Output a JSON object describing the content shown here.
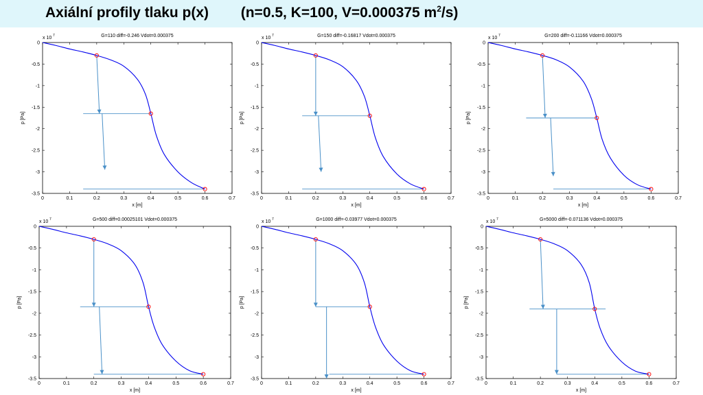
{
  "page": {
    "title_main": "Axiální profily tlaku p(x)",
    "title_params": "(n=0.5, K=100, V=0.000375 m",
    "title_sup": "2",
    "title_end": "/s)"
  },
  "colors": {
    "banner": "#dff6fb",
    "curve": "#0000ee",
    "arrow": "#4a90c8",
    "marker": "#ff0000"
  },
  "chart_data": [
    {
      "type": "line",
      "title": "G=110    diff=-0.246  Vdot=0.000375",
      "xlabel": "x [m]",
      "ylabel": "p [Pa]",
      "yscale_label": "x 10",
      "yscale_exp": "7",
      "xlim": [
        0,
        0.7
      ],
      "ylim": [
        -3.5,
        0
      ],
      "xticks": [
        "0",
        "0.1",
        "0.2",
        "0.3",
        "0.4",
        "0.5",
        "0.6",
        "0.7"
      ],
      "yticks": [
        "0",
        "-0.5",
        "-1",
        "-1.5",
        "-2",
        "-2.5",
        "-3",
        "-3.5"
      ],
      "x": [
        0,
        0.05,
        0.1,
        0.15,
        0.2,
        0.25,
        0.3,
        0.35,
        0.38,
        0.4,
        0.42,
        0.45,
        0.5,
        0.55,
        0.6
      ],
      "y": [
        0,
        -0.07,
        -0.15,
        -0.22,
        -0.3,
        -0.4,
        -0.55,
        -0.85,
        -1.2,
        -1.65,
        -2.15,
        -2.6,
        -3.0,
        -3.25,
        -3.4
      ],
      "markers": [
        {
          "x": 0.2,
          "y": -0.3
        },
        {
          "x": 0.4,
          "y": -1.65
        },
        {
          "x": 0.6,
          "y": -3.4
        }
      ],
      "guides": {
        "hline1": [
          0.15,
          0.4,
          -1.65
        ],
        "hline2": [
          0.15,
          0.6,
          -3.4
        ],
        "arrow1": [
          0.2,
          -0.3,
          0.21,
          -1.65
        ],
        "arrow2": [
          0.22,
          -1.65,
          0.23,
          -2.95
        ]
      }
    },
    {
      "type": "line",
      "title": "G=150    diff=-0.16817  Vdot=0.000375",
      "xlabel": "x [m]",
      "ylabel": "p [Pa]",
      "yscale_label": "x 10",
      "yscale_exp": "7",
      "xlim": [
        0,
        0.7
      ],
      "ylim": [
        -3.5,
        0
      ],
      "xticks": [
        "0",
        "0.1",
        "0.2",
        "0.3",
        "0.4",
        "0.5",
        "0.6",
        "0.7"
      ],
      "yticks": [
        "0",
        "-0.5",
        "-1",
        "-1.5",
        "-2",
        "-2.5",
        "-3",
        "-3.5"
      ],
      "x": [
        0,
        0.05,
        0.1,
        0.15,
        0.2,
        0.25,
        0.3,
        0.35,
        0.38,
        0.4,
        0.42,
        0.45,
        0.5,
        0.55,
        0.6
      ],
      "y": [
        0,
        -0.07,
        -0.15,
        -0.22,
        -0.3,
        -0.4,
        -0.56,
        -0.88,
        -1.25,
        -1.7,
        -2.2,
        -2.65,
        -3.05,
        -3.28,
        -3.4
      ],
      "markers": [
        {
          "x": 0.2,
          "y": -0.3
        },
        {
          "x": 0.4,
          "y": -1.7
        },
        {
          "x": 0.6,
          "y": -3.4
        }
      ],
      "guides": {
        "hline1": [
          0.15,
          0.4,
          -1.7
        ],
        "hline2": [
          0.15,
          0.6,
          -3.4
        ],
        "arrow1": [
          0.2,
          -0.3,
          0.2,
          -1.7
        ],
        "arrow2": [
          0.21,
          -1.7,
          0.22,
          -3.0
        ]
      }
    },
    {
      "type": "line",
      "title": "G=200    diff=-0.11166  Vdot=0.000375",
      "xlabel": "x [m]",
      "ylabel": "p [Pa]",
      "yscale_label": "x 10",
      "yscale_exp": "7",
      "xlim": [
        0,
        0.7
      ],
      "ylim": [
        -3.5,
        0
      ],
      "xticks": [
        "0",
        "0.1",
        "0.2",
        "0.3",
        "0.4",
        "0.5",
        "0.6",
        "0.7"
      ],
      "yticks": [
        "0",
        "-0.5",
        "-1",
        "-1.5",
        "-2",
        "-2.5",
        "-3",
        "-3.5"
      ],
      "x": [
        0,
        0.05,
        0.1,
        0.15,
        0.2,
        0.25,
        0.3,
        0.35,
        0.38,
        0.4,
        0.42,
        0.45,
        0.5,
        0.55,
        0.6
      ],
      "y": [
        0,
        -0.07,
        -0.15,
        -0.22,
        -0.3,
        -0.4,
        -0.57,
        -0.9,
        -1.3,
        -1.75,
        -2.25,
        -2.68,
        -3.08,
        -3.3,
        -3.4
      ],
      "markers": [
        {
          "x": 0.2,
          "y": -0.3
        },
        {
          "x": 0.4,
          "y": -1.75
        },
        {
          "x": 0.6,
          "y": -3.4
        }
      ],
      "guides": {
        "hline1": [
          0.14,
          0.4,
          -1.75
        ],
        "hline2": [
          0.24,
          0.6,
          -3.4
        ],
        "arrow1": [
          0.2,
          -0.3,
          0.21,
          -1.75
        ],
        "arrow2": [
          0.23,
          -1.75,
          0.24,
          -3.1
        ]
      }
    },
    {
      "type": "line",
      "title": "G=500    diff=0.00025101  Vdot=0.000375",
      "xlabel": "x [m]",
      "ylabel": "p [Pa]",
      "yscale_label": "x 10",
      "yscale_exp": "7",
      "xlim": [
        0,
        0.7
      ],
      "ylim": [
        -3.5,
        0
      ],
      "xticks": [
        "0",
        "0.1",
        "0.2",
        "0.3",
        "0.4",
        "0.5",
        "0.6",
        "0.7"
      ],
      "yticks": [
        "0",
        "-0.5",
        "-1",
        "-1.5",
        "-2",
        "-2.5",
        "-3",
        "-3.5"
      ],
      "x": [
        0,
        0.05,
        0.1,
        0.15,
        0.2,
        0.25,
        0.3,
        0.35,
        0.38,
        0.4,
        0.42,
        0.45,
        0.5,
        0.55,
        0.6
      ],
      "y": [
        0,
        -0.07,
        -0.15,
        -0.22,
        -0.3,
        -0.4,
        -0.56,
        -0.88,
        -1.3,
        -1.85,
        -2.3,
        -2.72,
        -3.1,
        -3.32,
        -3.4
      ],
      "markers": [
        {
          "x": 0.2,
          "y": -0.3
        },
        {
          "x": 0.4,
          "y": -1.85
        },
        {
          "x": 0.6,
          "y": -3.4
        }
      ],
      "guides": {
        "hline1": [
          0.15,
          0.4,
          -1.85
        ],
        "hline2": [
          0.2,
          0.6,
          -3.4
        ],
        "arrow1": [
          0.2,
          -0.3,
          0.2,
          -1.85
        ],
        "arrow2": [
          0.22,
          -1.85,
          0.23,
          -3.4
        ]
      }
    },
    {
      "type": "line",
      "title": "G=1000    diff=-0.03977  Vdot=0.000375",
      "xlabel": "x [m]",
      "ylabel": "p [Pa]",
      "yscale_label": "x 10",
      "yscale_exp": "7",
      "xlim": [
        0,
        0.7
      ],
      "ylim": [
        -3.5,
        0
      ],
      "xticks": [
        "0",
        "0.1",
        "0.2",
        "0.3",
        "0.4",
        "0.5",
        "0.6",
        "0.7"
      ],
      "yticks": [
        "0",
        "-0.5",
        "-1",
        "-1.5",
        "-2",
        "-2.5",
        "-3",
        "-3.5"
      ],
      "x": [
        0,
        0.05,
        0.1,
        0.15,
        0.2,
        0.25,
        0.3,
        0.35,
        0.38,
        0.4,
        0.42,
        0.45,
        0.5,
        0.55,
        0.6
      ],
      "y": [
        0,
        -0.07,
        -0.15,
        -0.22,
        -0.3,
        -0.4,
        -0.56,
        -0.88,
        -1.3,
        -1.85,
        -2.3,
        -2.72,
        -3.1,
        -3.32,
        -3.4
      ],
      "markers": [
        {
          "x": 0.2,
          "y": -0.3
        },
        {
          "x": 0.4,
          "y": -1.85
        },
        {
          "x": 0.6,
          "y": -3.4
        }
      ],
      "guides": {
        "hline1": [
          0.2,
          0.4,
          -1.85
        ],
        "hline2": [
          0.25,
          0.6,
          -3.4
        ],
        "arrow1": [
          0.2,
          -0.3,
          0.2,
          -1.85
        ],
        "arrow2": [
          0.24,
          -1.85,
          0.24,
          -3.5
        ]
      }
    },
    {
      "type": "line",
      "title": "G=5000    diff=-0.071136  Vdot=0.000375",
      "xlabel": "x [m]",
      "ylabel": "p [Pa]",
      "yscale_label": "x 10",
      "yscale_exp": "7",
      "xlim": [
        0,
        0.7
      ],
      "ylim": [
        -3.5,
        0
      ],
      "xticks": [
        "0",
        "0.1",
        "0.2",
        "0.3",
        "0.4",
        "0.5",
        "0.6",
        "0.7"
      ],
      "yticks": [
        "0",
        "-0.5",
        "-1",
        "-1.5",
        "-2",
        "-2.5",
        "-3",
        "-3.5"
      ],
      "x": [
        0,
        0.05,
        0.1,
        0.15,
        0.2,
        0.25,
        0.3,
        0.35,
        0.38,
        0.4,
        0.42,
        0.45,
        0.5,
        0.55,
        0.6
      ],
      "y": [
        0,
        -0.07,
        -0.15,
        -0.22,
        -0.3,
        -0.4,
        -0.56,
        -0.88,
        -1.3,
        -1.9,
        -2.35,
        -2.75,
        -3.12,
        -3.33,
        -3.4
      ],
      "markers": [
        {
          "x": 0.2,
          "y": -0.3
        },
        {
          "x": 0.4,
          "y": -1.9
        },
        {
          "x": 0.6,
          "y": -3.4
        }
      ],
      "guides": {
        "hline1": [
          0.16,
          0.44,
          -1.9
        ],
        "hline2": [
          0.26,
          0.6,
          -3.4
        ],
        "arrow1": [
          0.2,
          -0.3,
          0.21,
          -1.9
        ],
        "arrow2": [
          0.26,
          -1.9,
          0.26,
          -3.4
        ]
      }
    }
  ]
}
